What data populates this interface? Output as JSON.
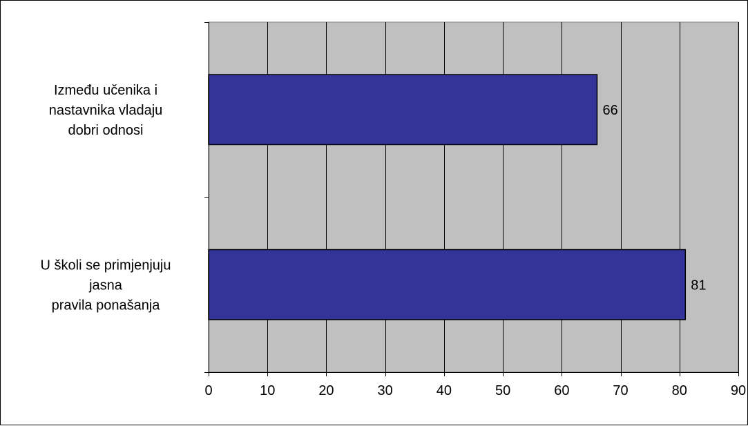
{
  "chart_data": {
    "type": "bar",
    "orientation": "horizontal",
    "categories": [
      [
        "Između učenika i",
        "nastavnika vladaju",
        "dobri odnosi"
      ],
      [
        "U školi se primjenjuju",
        "jasna",
        "pravila ponašanja"
      ]
    ],
    "values": [
      66,
      81
    ],
    "data_labels": [
      "66",
      "81"
    ],
    "xlim": [
      0,
      90
    ],
    "xticks": [
      0,
      10,
      20,
      30,
      40,
      50,
      60,
      70,
      80,
      90
    ],
    "xtick_labels": [
      "0",
      "10",
      "20",
      "30",
      "40",
      "50",
      "60",
      "70",
      "80",
      "90"
    ],
    "grid": "vertical",
    "legend": "none",
    "colors": {
      "bar": "#333399",
      "plot_background": "#c0c0c0",
      "grid": "#000000"
    }
  }
}
